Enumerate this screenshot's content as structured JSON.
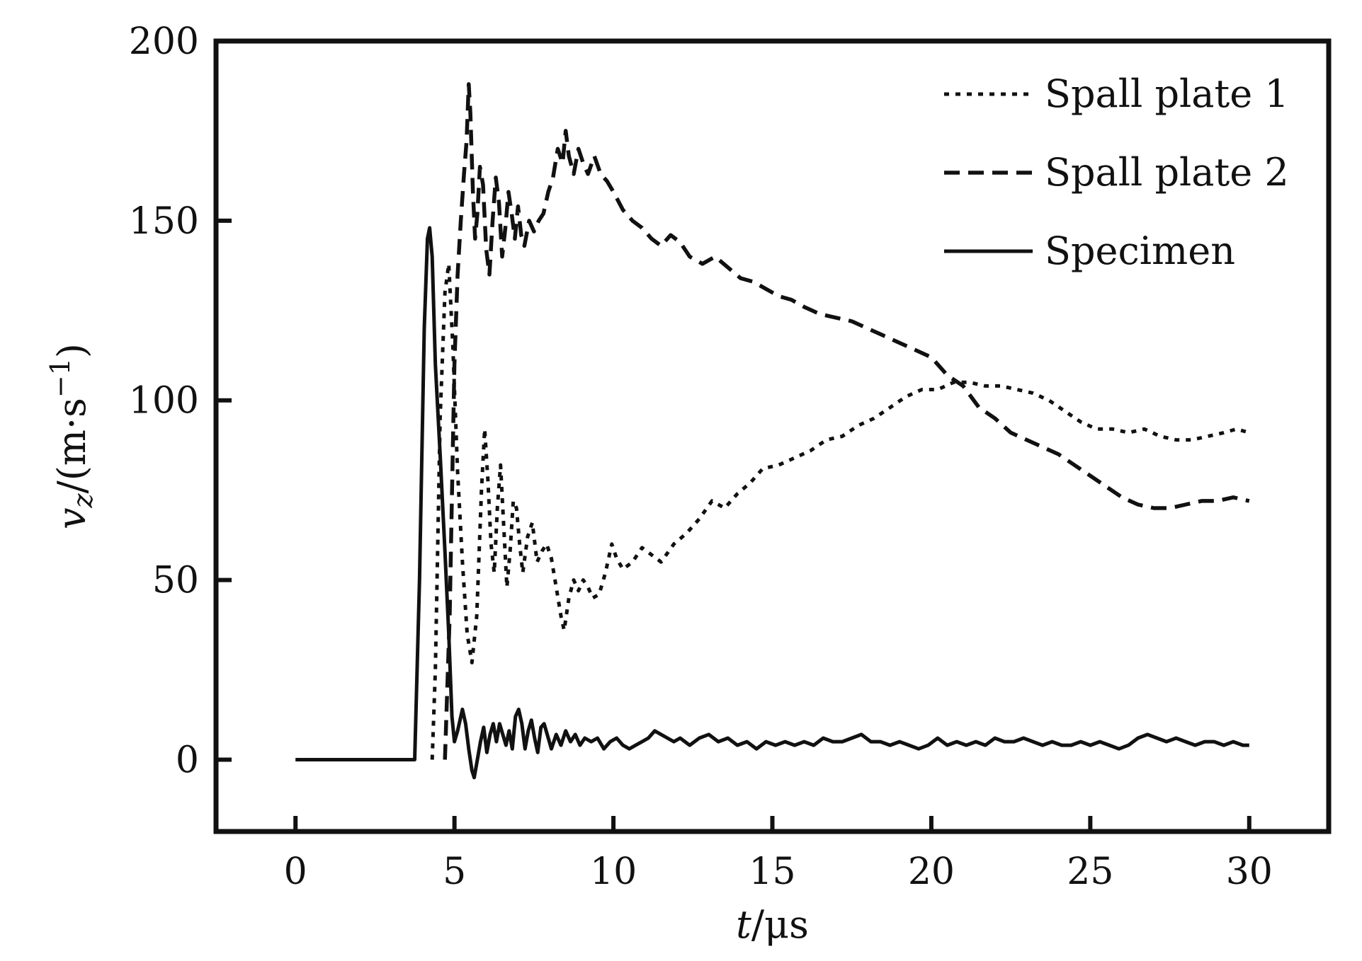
{
  "chart_data": {
    "type": "line",
    "title": "",
    "xlabel_italic": "t",
    "xlabel_rest": "/μs",
    "ylabel_italic": "v",
    "ylabel_sub": "z",
    "ylabel_rest": "/(m·s",
    "ylabel_sup": "−1",
    "ylabel_close": ")",
    "xlim": [
      -2.5,
      32.5
    ],
    "ylim": [
      -20,
      200
    ],
    "xticks": [
      0,
      5,
      10,
      15,
      20,
      25,
      30
    ],
    "yticks": [
      0,
      50,
      100,
      150,
      200
    ],
    "legend_position": "top-right",
    "grid": false,
    "series": [
      {
        "name": "Spall plate 1",
        "style": "dotted",
        "points": [
          [
            4.3,
            0
          ],
          [
            4.4,
            25
          ],
          [
            4.55,
            95
          ],
          [
            4.7,
            130
          ],
          [
            4.82,
            138
          ],
          [
            4.95,
            115
          ],
          [
            5.1,
            80
          ],
          [
            5.25,
            55
          ],
          [
            5.4,
            35
          ],
          [
            5.55,
            27
          ],
          [
            5.7,
            40
          ],
          [
            5.85,
            75
          ],
          [
            5.95,
            92
          ],
          [
            6.05,
            78
          ],
          [
            6.15,
            60
          ],
          [
            6.25,
            52
          ],
          [
            6.35,
            70
          ],
          [
            6.45,
            82
          ],
          [
            6.55,
            65
          ],
          [
            6.65,
            48
          ],
          [
            6.75,
            58
          ],
          [
            6.85,
            72
          ],
          [
            6.95,
            70
          ],
          [
            7.05,
            60
          ],
          [
            7.15,
            52
          ],
          [
            7.3,
            62
          ],
          [
            7.45,
            66
          ],
          [
            7.6,
            55
          ],
          [
            7.75,
            58
          ],
          [
            7.9,
            60
          ],
          [
            8.05,
            56
          ],
          [
            8.2,
            48
          ],
          [
            8.35,
            40
          ],
          [
            8.45,
            36
          ],
          [
            8.6,
            45
          ],
          [
            8.75,
            50
          ],
          [
            8.9,
            47
          ],
          [
            9.05,
            50
          ],
          [
            9.2,
            48
          ],
          [
            9.35,
            45
          ],
          [
            9.55,
            46
          ],
          [
            9.75,
            52
          ],
          [
            9.95,
            60
          ],
          [
            10.1,
            56
          ],
          [
            10.3,
            53
          ],
          [
            10.6,
            55
          ],
          [
            10.9,
            59
          ],
          [
            11.2,
            57
          ],
          [
            11.5,
            55
          ],
          [
            11.9,
            60
          ],
          [
            12.3,
            63
          ],
          [
            12.7,
            67
          ],
          [
            13.1,
            72
          ],
          [
            13.5,
            70
          ],
          [
            13.9,
            74
          ],
          [
            14.3,
            77
          ],
          [
            14.7,
            81
          ],
          [
            15.2,
            82
          ],
          [
            15.7,
            84
          ],
          [
            16.2,
            86
          ],
          [
            16.7,
            89
          ],
          [
            17.2,
            90
          ],
          [
            17.7,
            93
          ],
          [
            18.2,
            95
          ],
          [
            18.7,
            98
          ],
          [
            19.2,
            101
          ],
          [
            19.7,
            103
          ],
          [
            20.2,
            103
          ],
          [
            20.7,
            105
          ],
          [
            21.2,
            105
          ],
          [
            21.7,
            104
          ],
          [
            22.2,
            104
          ],
          [
            22.7,
            103
          ],
          [
            23.2,
            102
          ],
          [
            23.7,
            100
          ],
          [
            24.2,
            97
          ],
          [
            24.7,
            94
          ],
          [
            25.2,
            92
          ],
          [
            25.7,
            92
          ],
          [
            26.2,
            91
          ],
          [
            26.7,
            92
          ],
          [
            27.2,
            90
          ],
          [
            27.7,
            89
          ],
          [
            28.2,
            89
          ],
          [
            28.7,
            90
          ],
          [
            29.2,
            91
          ],
          [
            29.6,
            92
          ],
          [
            30.0,
            91
          ]
        ]
      },
      {
        "name": "Spall plate 2",
        "style": "dashed",
        "points": [
          [
            4.7,
            0
          ],
          [
            4.85,
            40
          ],
          [
            5.0,
            110
          ],
          [
            5.1,
            135
          ],
          [
            5.2,
            150
          ],
          [
            5.3,
            163
          ],
          [
            5.38,
            172
          ],
          [
            5.45,
            188
          ],
          [
            5.5,
            180
          ],
          [
            5.58,
            158
          ],
          [
            5.65,
            145
          ],
          [
            5.72,
            152
          ],
          [
            5.8,
            165
          ],
          [
            5.9,
            160
          ],
          [
            6.0,
            142
          ],
          [
            6.1,
            135
          ],
          [
            6.2,
            150
          ],
          [
            6.3,
            162
          ],
          [
            6.4,
            155
          ],
          [
            6.5,
            140
          ],
          [
            6.6,
            148
          ],
          [
            6.7,
            158
          ],
          [
            6.8,
            152
          ],
          [
            6.9,
            145
          ],
          [
            7.0,
            154
          ],
          [
            7.1,
            146
          ],
          [
            7.2,
            143
          ],
          [
            7.35,
            150
          ],
          [
            7.5,
            147
          ],
          [
            7.65,
            150
          ],
          [
            7.8,
            152
          ],
          [
            7.95,
            158
          ],
          [
            8.1,
            162
          ],
          [
            8.25,
            170
          ],
          [
            8.4,
            166
          ],
          [
            8.5,
            175
          ],
          [
            8.6,
            168
          ],
          [
            8.75,
            163
          ],
          [
            8.9,
            170
          ],
          [
            9.05,
            166
          ],
          [
            9.2,
            163
          ],
          [
            9.4,
            168
          ],
          [
            9.6,
            163
          ],
          [
            9.8,
            161
          ],
          [
            10.0,
            158
          ],
          [
            10.3,
            153
          ],
          [
            10.6,
            150
          ],
          [
            10.9,
            148
          ],
          [
            11.2,
            145
          ],
          [
            11.5,
            143
          ],
          [
            11.8,
            146
          ],
          [
            12.1,
            144
          ],
          [
            12.4,
            140
          ],
          [
            12.8,
            138
          ],
          [
            13.2,
            140
          ],
          [
            13.6,
            137
          ],
          [
            14.0,
            134
          ],
          [
            14.4,
            133
          ],
          [
            14.8,
            131
          ],
          [
            15.2,
            129
          ],
          [
            15.6,
            128
          ],
          [
            16.0,
            126
          ],
          [
            16.5,
            124
          ],
          [
            17.0,
            123
          ],
          [
            17.5,
            122
          ],
          [
            18.0,
            120
          ],
          [
            18.5,
            118
          ],
          [
            19.0,
            116
          ],
          [
            19.5,
            114
          ],
          [
            20.0,
            112
          ],
          [
            20.5,
            107
          ],
          [
            21.0,
            104
          ],
          [
            21.5,
            98
          ],
          [
            22.0,
            95
          ],
          [
            22.5,
            91
          ],
          [
            23.0,
            89
          ],
          [
            23.5,
            87
          ],
          [
            24.0,
            85
          ],
          [
            24.5,
            82
          ],
          [
            25.0,
            79
          ],
          [
            25.5,
            76
          ],
          [
            26.0,
            73
          ],
          [
            26.5,
            71
          ],
          [
            27.0,
            70
          ],
          [
            27.5,
            70
          ],
          [
            28.0,
            71
          ],
          [
            28.5,
            72
          ],
          [
            29.0,
            72
          ],
          [
            29.5,
            73
          ],
          [
            30.0,
            72
          ]
        ]
      },
      {
        "name": "Specimen",
        "style": "solid",
        "points": [
          [
            0,
            0
          ],
          [
            3.6,
            0
          ],
          [
            3.75,
            0
          ],
          [
            3.9,
            50
          ],
          [
            4.05,
            120
          ],
          [
            4.15,
            145
          ],
          [
            4.22,
            148
          ],
          [
            4.3,
            140
          ],
          [
            4.4,
            110
          ],
          [
            4.55,
            85
          ],
          [
            4.7,
            58
          ],
          [
            4.82,
            35
          ],
          [
            4.92,
            12
          ],
          [
            5.0,
            5
          ],
          [
            5.1,
            8
          ],
          [
            5.25,
            14
          ],
          [
            5.35,
            10
          ],
          [
            5.45,
            3
          ],
          [
            5.55,
            -3
          ],
          [
            5.62,
            -5
          ],
          [
            5.72,
            0
          ],
          [
            5.82,
            5
          ],
          [
            5.92,
            9
          ],
          [
            6.02,
            2
          ],
          [
            6.12,
            7
          ],
          [
            6.22,
            10
          ],
          [
            6.32,
            5
          ],
          [
            6.42,
            10
          ],
          [
            6.52,
            7
          ],
          [
            6.62,
            4
          ],
          [
            6.72,
            8
          ],
          [
            6.82,
            3
          ],
          [
            6.92,
            12
          ],
          [
            7.02,
            14
          ],
          [
            7.12,
            10
          ],
          [
            7.22,
            3
          ],
          [
            7.32,
            8
          ],
          [
            7.42,
            11
          ],
          [
            7.52,
            6
          ],
          [
            7.62,
            2
          ],
          [
            7.72,
            9
          ],
          [
            7.82,
            10
          ],
          [
            7.95,
            6
          ],
          [
            8.05,
            3
          ],
          [
            8.2,
            7
          ],
          [
            8.35,
            4
          ],
          [
            8.5,
            8
          ],
          [
            8.65,
            5
          ],
          [
            8.8,
            7
          ],
          [
            8.95,
            4
          ],
          [
            9.1,
            6
          ],
          [
            9.3,
            5
          ],
          [
            9.5,
            6
          ],
          [
            9.7,
            3
          ],
          [
            9.9,
            5
          ],
          [
            10.1,
            6
          ],
          [
            10.3,
            4
          ],
          [
            10.5,
            3
          ],
          [
            10.7,
            4
          ],
          [
            10.9,
            5
          ],
          [
            11.1,
            6
          ],
          [
            11.3,
            8
          ],
          [
            11.5,
            7
          ],
          [
            11.7,
            6
          ],
          [
            11.9,
            5
          ],
          [
            12.1,
            6
          ],
          [
            12.4,
            4
          ],
          [
            12.7,
            6
          ],
          [
            13.0,
            7
          ],
          [
            13.3,
            5
          ],
          [
            13.6,
            6
          ],
          [
            13.9,
            4
          ],
          [
            14.2,
            5
          ],
          [
            14.5,
            3
          ],
          [
            14.8,
            5
          ],
          [
            15.1,
            4
          ],
          [
            15.4,
            5
          ],
          [
            15.7,
            4
          ],
          [
            16.0,
            5
          ],
          [
            16.3,
            4
          ],
          [
            16.6,
            6
          ],
          [
            16.9,
            5
          ],
          [
            17.2,
            5
          ],
          [
            17.5,
            6
          ],
          [
            17.8,
            7
          ],
          [
            18.1,
            5
          ],
          [
            18.4,
            5
          ],
          [
            18.7,
            4
          ],
          [
            19.0,
            5
          ],
          [
            19.3,
            4
          ],
          [
            19.6,
            3
          ],
          [
            19.9,
            4
          ],
          [
            20.2,
            6
          ],
          [
            20.5,
            4
          ],
          [
            20.8,
            5
          ],
          [
            21.1,
            4
          ],
          [
            21.4,
            5
          ],
          [
            21.7,
            4
          ],
          [
            22.0,
            6
          ],
          [
            22.3,
            5
          ],
          [
            22.6,
            5
          ],
          [
            22.9,
            6
          ],
          [
            23.2,
            5
          ],
          [
            23.5,
            4
          ],
          [
            23.8,
            5
          ],
          [
            24.1,
            4
          ],
          [
            24.4,
            4
          ],
          [
            24.7,
            5
          ],
          [
            25.0,
            4
          ],
          [
            25.3,
            5
          ],
          [
            25.6,
            4
          ],
          [
            25.9,
            3
          ],
          [
            26.2,
            4
          ],
          [
            26.5,
            6
          ],
          [
            26.8,
            7
          ],
          [
            27.1,
            6
          ],
          [
            27.4,
            5
          ],
          [
            27.7,
            6
          ],
          [
            28.0,
            5
          ],
          [
            28.3,
            4
          ],
          [
            28.6,
            5
          ],
          [
            28.9,
            5
          ],
          [
            29.2,
            4
          ],
          [
            29.5,
            5
          ],
          [
            29.8,
            4
          ],
          [
            30.0,
            4
          ]
        ]
      }
    ]
  }
}
